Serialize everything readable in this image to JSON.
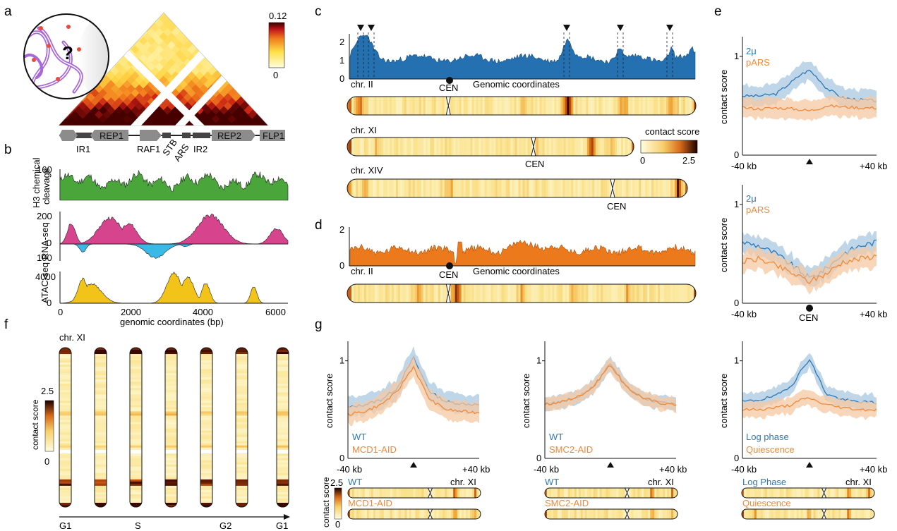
{
  "panel_letters": [
    "a",
    "b",
    "c",
    "d",
    "e",
    "f",
    "g"
  ],
  "colors": {
    "wt": "#2f78b5",
    "wt_band": "#aac8e2",
    "mut": "#ee8a3a",
    "mut_band": "#f5c8a2",
    "chip": "#4aa53a",
    "rna_pos": "#d6448e",
    "rna_neg": "#3bb9e6",
    "atac": "#f2c318",
    "c_profile": "#2470b0",
    "d_profile": "#ec7a1c",
    "gene": "#8c8c8c",
    "heat_low": "#fffde0",
    "heat_mid": "#f0a030",
    "heat_high": "#5a0a00"
  },
  "panel_a": {
    "cbar_max": "0.12",
    "cbar_min": "0",
    "question": "?",
    "genes": [
      "REP1",
      "REP2",
      "FLP1"
    ],
    "elements": [
      "IR1",
      "RAF1",
      "STB",
      "ARS",
      "IR2"
    ]
  },
  "panel_b": {
    "chip_label": [
      "H3 chemical",
      "cleavage"
    ],
    "rna_label": "RNA-seq",
    "atac_label": "ATAC-seq",
    "chip_tick": "160",
    "rna_ticks": [
      "200",
      "0",
      "100"
    ],
    "atac_ticks": [
      "4000",
      "0"
    ],
    "x_ticks": [
      "0",
      "2000",
      "4000",
      "6000"
    ],
    "xlabel": "genomic coordinates (bp)"
  },
  "panel_c": {
    "y_ticks": [
      "2",
      "1",
      "0"
    ],
    "chroms": [
      "chr. II",
      "chr. XI",
      "chr. XIV"
    ],
    "cen": "CEN",
    "genomic": "Genomic coordinates",
    "cbar_title": "contact score",
    "cbar_min": "0",
    "cbar_max": "2.5"
  },
  "panel_d": {
    "y_ticks": [
      "2",
      "0"
    ],
    "chrom": "chr. II",
    "cen": "CEN",
    "genomic": "Genomic coordinates"
  },
  "panel_e": {
    "ylabel": "contact score",
    "y_ticks": [
      "1",
      "0"
    ],
    "x_left": "-40 kb",
    "x_right": "+40 kb",
    "legend_wt": "2μ",
    "legend_mut": "pARS",
    "cen": "CEN"
  },
  "panel_f": {
    "chrom": "chr. XI",
    "cbar_label": "contact score",
    "cbar_max": "2.5",
    "cbar_min": "0",
    "phases": [
      "G1",
      "S",
      "G2",
      "G1"
    ]
  },
  "panel_g": {
    "ylabel": "contact score",
    "y_ticks": [
      "1",
      "0"
    ],
    "x_left": "-40 kb",
    "x_right": "+40 kb",
    "chrom": "chr. XI",
    "cbar_max": "2.5",
    "cbar_min": "0",
    "cbar_label": "contact score",
    "plots": [
      {
        "wt": "WT",
        "mut": "MCD1-AID",
        "wt_strip": "WT",
        "mut_strip": "MCD1-AID"
      },
      {
        "wt": "WT",
        "mut": "SMC2-AID",
        "wt_strip": "WT",
        "mut_strip": "SMC2-AID"
      },
      {
        "wt": "Log phase",
        "mut": "Quiescence",
        "wt_strip": "Log Phase",
        "mut_strip": "Quiescence"
      }
    ]
  },
  "chart_data": [
    {
      "panel": "e-top",
      "type": "line",
      "x_range": [
        -40,
        40
      ],
      "x_unit": "kb",
      "ylim": [
        0,
        1.2
      ],
      "x": [
        -40,
        -30,
        -20,
        -10,
        -5,
        0,
        5,
        10,
        20,
        30,
        40
      ],
      "series": [
        {
          "name": "2μ",
          "values": [
            0.6,
            0.6,
            0.62,
            0.75,
            0.82,
            0.86,
            0.78,
            0.68,
            0.58,
            0.56,
            0.55
          ]
        },
        {
          "name": "pARS",
          "values": [
            0.48,
            0.47,
            0.48,
            0.47,
            0.46,
            0.45,
            0.47,
            0.5,
            0.49,
            0.48,
            0.48
          ]
        }
      ]
    },
    {
      "panel": "e-middle",
      "type": "line",
      "x_range": [
        -40,
        40
      ],
      "x_unit": "kb",
      "ylim": [
        0,
        1.2
      ],
      "x": [
        -40,
        -30,
        -20,
        -10,
        0,
        10,
        20,
        30,
        40
      ],
      "series": [
        {
          "name": "2μ",
          "values": [
            0.62,
            0.58,
            0.5,
            0.38,
            0.25,
            0.35,
            0.5,
            0.58,
            0.62
          ]
        },
        {
          "name": "pARS",
          "values": [
            0.42,
            0.45,
            0.38,
            0.3,
            0.22,
            0.3,
            0.42,
            0.45,
            0.48
          ]
        }
      ]
    },
    {
      "panel": "g-1",
      "type": "line",
      "x_range": [
        -40,
        40
      ],
      "x_unit": "kb",
      "ylim": [
        0,
        1.2
      ],
      "x": [
        -40,
        -30,
        -20,
        -10,
        -5,
        0,
        5,
        10,
        20,
        30,
        40
      ],
      "series": [
        {
          "name": "WT",
          "values": [
            0.52,
            0.55,
            0.6,
            0.72,
            0.88,
            1.03,
            0.85,
            0.68,
            0.58,
            0.56,
            0.55
          ]
        },
        {
          "name": "MCD1-AID",
          "values": [
            0.45,
            0.48,
            0.55,
            0.68,
            0.82,
            0.94,
            0.76,
            0.6,
            0.5,
            0.48,
            0.47
          ]
        }
      ]
    },
    {
      "panel": "g-2",
      "type": "line",
      "x_range": [
        -40,
        40
      ],
      "x_unit": "kb",
      "ylim": [
        0,
        1.2
      ],
      "x": [
        -40,
        -30,
        -20,
        -10,
        -5,
        0,
        5,
        10,
        20,
        30,
        40
      ],
      "series": [
        {
          "name": "WT",
          "values": [
            0.55,
            0.58,
            0.63,
            0.74,
            0.86,
            0.98,
            0.85,
            0.73,
            0.62,
            0.57,
            0.55
          ]
        },
        {
          "name": "SMC2-AID",
          "values": [
            0.55,
            0.58,
            0.63,
            0.74,
            0.86,
            0.96,
            0.84,
            0.72,
            0.62,
            0.57,
            0.55
          ]
        }
      ]
    },
    {
      "panel": "g-3",
      "type": "line",
      "x_range": [
        -40,
        40
      ],
      "x_unit": "kb",
      "ylim": [
        0,
        1.2
      ],
      "x": [
        -40,
        -30,
        -20,
        -10,
        -5,
        0,
        5,
        10,
        20,
        30,
        40
      ],
      "series": [
        {
          "name": "Log phase",
          "values": [
            0.58,
            0.6,
            0.64,
            0.76,
            0.9,
            1.02,
            0.84,
            0.66,
            0.6,
            0.58,
            0.57
          ]
        },
        {
          "name": "Quiescence",
          "values": [
            0.5,
            0.5,
            0.52,
            0.55,
            0.6,
            0.62,
            0.58,
            0.55,
            0.52,
            0.5,
            0.5
          ]
        }
      ]
    }
  ]
}
